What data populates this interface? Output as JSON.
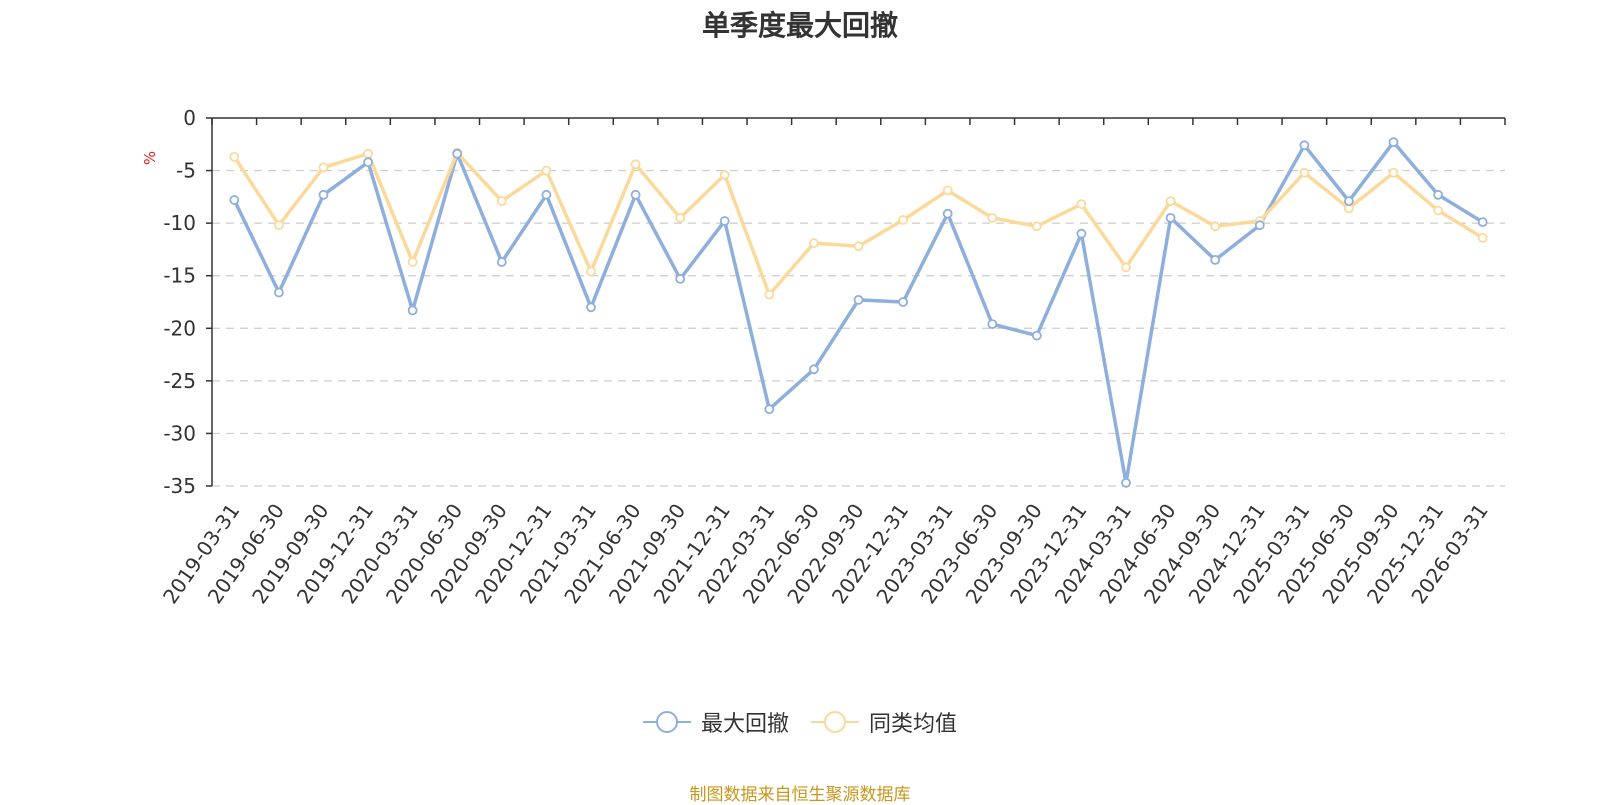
{
  "chart_data": {
    "type": "line",
    "title": "单季度最大回撤",
    "ylabel": "%",
    "ylim": [
      -35,
      0
    ],
    "yticks": [
      0,
      -5,
      -10,
      -15,
      -20,
      -25,
      -30,
      -35
    ],
    "grid": true,
    "legend_position": "bottom",
    "categories": [
      "2019-03-31",
      "2019-06-30",
      "2019-09-30",
      "2019-12-31",
      "2020-03-31",
      "2020-06-30",
      "2020-09-30",
      "2020-12-31",
      "2021-03-31",
      "2021-06-30",
      "2021-09-30",
      "2021-12-31",
      "2022-03-31",
      "2022-06-30",
      "2022-09-30",
      "2022-12-31",
      "2023-03-31",
      "2023-06-30",
      "2023-09-30",
      "2023-12-31",
      "2024-03-31",
      "2024-06-30",
      "2024-09-30",
      "2024-12-31",
      "2025-03-31",
      "2025-06-30",
      "2025-09-30",
      "2025-12-31",
      "2026-03-31"
    ],
    "series": [
      {
        "name": "最大回撤",
        "color": "#8eafdc",
        "values": [
          -7.8,
          -16.6,
          -7.3,
          -4.2,
          -18.3,
          -3.4,
          -13.7,
          -7.3,
          -18.0,
          -7.3,
          -15.3,
          -9.8,
          -27.7,
          -23.9,
          -17.3,
          -17.5,
          -9.1,
          -19.6,
          -20.7,
          -11.0,
          -34.7,
          -9.5,
          -13.5,
          -10.2,
          -2.6,
          -7.9,
          -2.3,
          -7.3,
          -9.9
        ]
      },
      {
        "name": "同类均值",
        "color": "#fbd99a",
        "values": [
          -3.7,
          -10.2,
          -4.7,
          -3.4,
          -13.7,
          -3.3,
          -7.9,
          -5.0,
          -14.6,
          -4.4,
          -9.5,
          -5.4,
          -16.8,
          -11.9,
          -12.2,
          -9.7,
          -6.9,
          -9.5,
          -10.3,
          -8.2,
          -14.2,
          -7.9,
          -10.3,
          -9.8,
          -5.2,
          -8.6,
          -5.2,
          -8.8,
          -11.4
        ]
      }
    ],
    "source": "制图数据来自恒生聚源数据库"
  }
}
